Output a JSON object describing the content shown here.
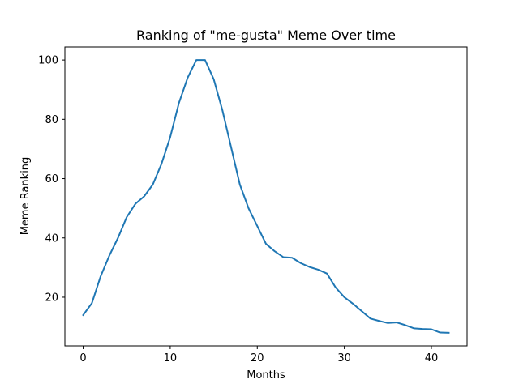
{
  "chart_data": {
    "type": "line",
    "title": "Ranking of \"me-gusta\" Meme Over time",
    "xlabel": "Months",
    "ylabel": "Meme Ranking",
    "xlim": [
      -2.1,
      44.1
    ],
    "ylim": [
      3.6,
      104.4
    ],
    "xticks": [
      0,
      10,
      20,
      30,
      40
    ],
    "yticks": [
      20,
      40,
      60,
      80,
      100
    ],
    "grid": false,
    "legend": "none",
    "series": [
      {
        "color": "#1f77b4",
        "x": [
          0,
          1,
          2,
          3,
          4,
          5,
          6,
          7,
          8,
          9,
          10,
          11,
          12,
          13,
          14,
          15,
          16,
          17,
          18,
          19,
          20,
          21,
          22,
          23,
          24,
          25,
          26,
          27,
          28,
          29,
          30,
          31,
          32,
          33,
          34,
          35,
          36,
          37,
          38,
          39,
          40,
          41,
          42
        ],
        "values": [
          14,
          18,
          27,
          34,
          40,
          47,
          51.5,
          54,
          58,
          65,
          74,
          85.5,
          94,
          100,
          100,
          93.5,
          83,
          70.5,
          58,
          50,
          44,
          38,
          35.5,
          33.5,
          33.3,
          31.5,
          30.2,
          29.3,
          28,
          23.3,
          20,
          17.8,
          15.3,
          12.8,
          12,
          11.3,
          11.5,
          10.6,
          9.5,
          9.3,
          9.2,
          8.1,
          8
        ]
      }
    ]
  }
}
